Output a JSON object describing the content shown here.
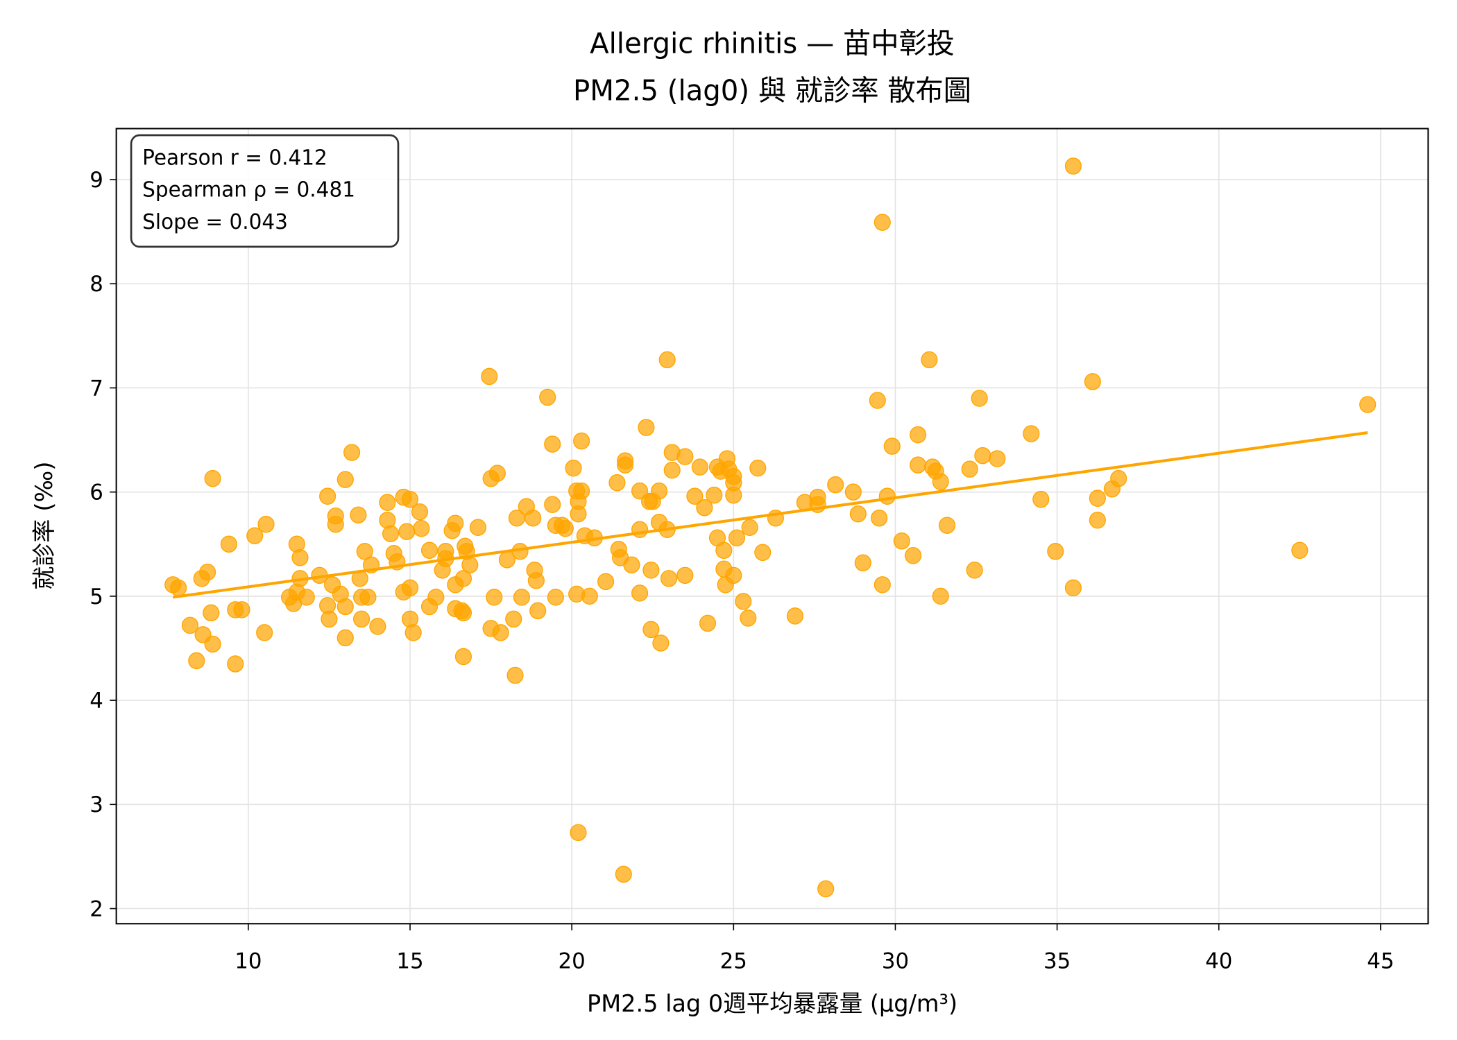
{
  "chart_data": {
    "type": "scatter",
    "title": "Allergic rhinitis — 苗中彰投",
    "subtitle": "PM2.5 (lag0) 與 就診率 散布圖",
    "x_label": "PM2.5 lag 0週平均暴露量 (μg/m³)",
    "y_label": "就診率 (‰)",
    "annotations": [
      "Pearson r = 0.412",
      "Spearman ρ = 0.481",
      "Slope = 0.043"
    ],
    "xlim": [
      5.92,
      46.47
    ],
    "ylim": [
      1.855,
      9.49
    ],
    "xticks": [
      10,
      15,
      20,
      25,
      30,
      35,
      40,
      45
    ],
    "yticks": [
      2,
      3,
      4,
      5,
      6,
      7,
      8,
      9
    ],
    "grid": true,
    "color": "#ffa500",
    "trend": {
      "color": "#ffa500",
      "x": [
        7.67,
        44.6
      ],
      "values": [
        4.99,
        6.57
      ]
    },
    "x": [
      7.67,
      7.84,
      8.56,
      8.74,
      8.9,
      8.85,
      8.2,
      8.6,
      8.9,
      8.4,
      9.4,
      9.6,
      9.8,
      9.6,
      10.2,
      10.55,
      10.5,
      11.27,
      11.4,
      11.5,
      11.5,
      11.6,
      11.6,
      11.8,
      12.2,
      12.45,
      12.6,
      12.45,
      12.5,
      12.7,
      12.7,
      12.85,
      13.0,
      13.0,
      13.2,
      13.0,
      13.4,
      13.45,
      13.5,
      13.5,
      13.6,
      13.7,
      13.8,
      14.0,
      14.3,
      14.3,
      14.4,
      14.5,
      14.6,
      14.8,
      14.8,
      15.0,
      14.9,
      15.0,
      15.0,
      15.1,
      15.3,
      15.35,
      15.6,
      15.6,
      15.8,
      16.0,
      16.1,
      16.1,
      16.3,
      16.4,
      16.4,
      16.4,
      16.6,
      16.65,
      16.65,
      16.7,
      16.75,
      16.85,
      16.65,
      17.1,
      17.45,
      17.5,
      17.7,
      17.5,
      17.6,
      17.8,
      18.0,
      18.2,
      18.25,
      18.3,
      18.4,
      18.45,
      18.6,
      18.8,
      18.85,
      18.9,
      18.95,
      19.25,
      19.4,
      19.4,
      19.5,
      19.5,
      19.7,
      19.8,
      20.05,
      20.15,
      20.2,
      20.2,
      20.15,
      20.2,
      20.3,
      20.3,
      20.4,
      20.55,
      20.7,
      21.05,
      21.4,
      21.45,
      21.5,
      21.6,
      21.65,
      21.65,
      21.85,
      22.1,
      22.1,
      22.1,
      22.3,
      22.4,
      22.45,
      22.45,
      22.5,
      22.7,
      22.7,
      22.75,
      22.95,
      22.95,
      23.0,
      23.1,
      23.1,
      23.5,
      23.5,
      23.8,
      23.96,
      24.1,
      24.2,
      24.4,
      24.5,
      24.5,
      24.6,
      24.7,
      24.7,
      24.75,
      24.8,
      24.85,
      25.0,
      25.0,
      25.0,
      25.0,
      25.1,
      25.3,
      25.45,
      25.5,
      25.75,
      25.9,
      26.3,
      26.9,
      27.2,
      27.6,
      27.6,
      27.85,
      28.15,
      28.7,
      28.85,
      29.0,
      29.45,
      29.5,
      29.6,
      29.6,
      29.75,
      29.9,
      30.2,
      30.55,
      30.7,
      30.7,
      31.05,
      31.15,
      31.25,
      31.4,
      31.4,
      31.6,
      32.3,
      32.45,
      32.6,
      32.7,
      33.15,
      34.2,
      34.5,
      34.95,
      35.5,
      35.5,
      36.1,
      36.25,
      36.25,
      36.7,
      36.9,
      42.5,
      44.6
    ],
    "values": [
      5.11,
      5.08,
      5.17,
      5.23,
      6.13,
      4.84,
      4.72,
      4.63,
      4.54,
      4.38,
      5.5,
      4.87,
      4.87,
      4.35,
      5.58,
      5.69,
      4.65,
      4.99,
      4.93,
      5.04,
      5.5,
      5.37,
      5.17,
      4.99,
      5.2,
      5.96,
      5.11,
      4.91,
      4.78,
      5.77,
      5.69,
      5.02,
      4.9,
      6.12,
      6.38,
      4.6,
      5.78,
      5.17,
      4.99,
      4.78,
      5.43,
      4.99,
      5.3,
      4.71,
      5.9,
      5.73,
      5.6,
      5.41,
      5.33,
      5.95,
      5.04,
      5.93,
      5.62,
      4.78,
      5.08,
      4.65,
      5.81,
      5.65,
      5.44,
      4.9,
      4.99,
      5.25,
      5.43,
      5.36,
      5.63,
      5.7,
      5.11,
      4.88,
      4.86,
      4.84,
      4.42,
      5.48,
      5.43,
      5.3,
      5.17,
      5.66,
      7.11,
      6.13,
      6.18,
      4.69,
      4.99,
      4.65,
      5.35,
      4.78,
      4.24,
      5.75,
      5.43,
      4.99,
      5.86,
      5.75,
      5.25,
      5.15,
      4.86,
      6.91,
      5.88,
      6.46,
      5.68,
      4.99,
      5.68,
      5.65,
      6.23,
      6.01,
      5.79,
      5.91,
      5.02,
      2.73,
      6.49,
      6.01,
      5.58,
      5.0,
      5.56,
      5.14,
      6.09,
      5.45,
      5.37,
      2.33,
      6.3,
      6.26,
      5.3,
      5.03,
      5.64,
      6.01,
      6.62,
      5.91,
      5.25,
      4.68,
      5.91,
      5.71,
      6.01,
      4.55,
      7.27,
      5.64,
      5.17,
      6.21,
      6.38,
      6.34,
      5.2,
      5.96,
      6.24,
      5.85,
      4.74,
      5.97,
      6.24,
      5.56,
      6.2,
      5.44,
      5.26,
      5.11,
      6.32,
      6.22,
      6.15,
      6.09,
      5.97,
      5.2,
      5.56,
      4.95,
      4.79,
      5.66,
      6.23,
      5.42,
      5.75,
      4.81,
      5.9,
      5.95,
      5.88,
      2.19,
      6.07,
      6.0,
      5.79,
      5.32,
      6.88,
      5.75,
      8.59,
      5.11,
      5.96,
      6.44,
      5.53,
      5.39,
      6.55,
      6.26,
      7.27,
      6.24,
      6.2,
      6.1,
      5.0,
      5.68,
      6.22,
      5.25,
      6.9,
      6.35,
      6.32,
      6.56,
      5.93,
      5.43,
      9.13,
      5.08,
      7.06,
      5.94,
      5.73,
      6.03,
      6.13,
      5.44,
      6.84
    ]
  }
}
